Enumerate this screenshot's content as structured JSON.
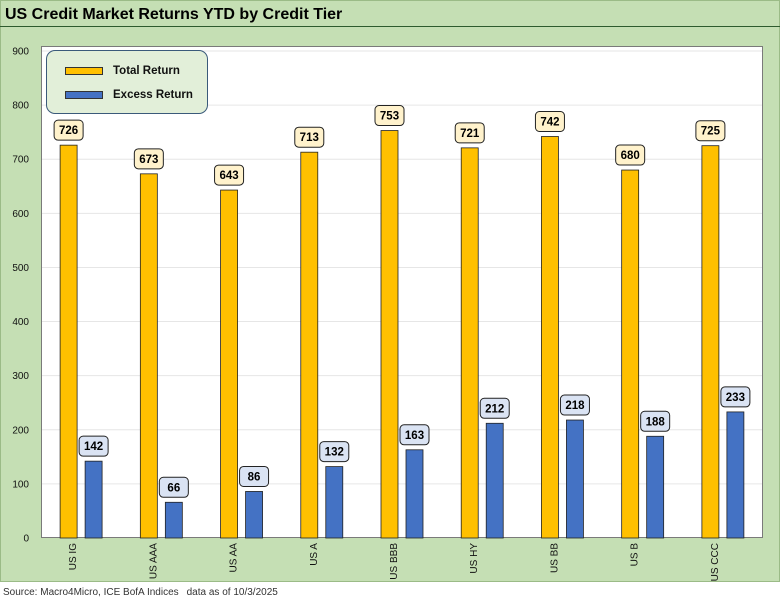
{
  "title": "US Credit Market Returns YTD by Credit Tier",
  "source": "Source: Macro4Micro, ICE BofA Indices",
  "data_as_of": "data as of 10/3/2025",
  "colors": {
    "total": "#FFC000",
    "excess": "#4472C4",
    "total_label_bg": "#FFF2CC",
    "excess_label_bg": "#DAE3F3"
  },
  "chart_data": {
    "type": "bar",
    "title": "US Credit Market Returns YTD by Credit Tier",
    "xlabel": "",
    "ylabel": "",
    "ylim": [
      0,
      900
    ],
    "yticks": [
      0,
      100,
      200,
      300,
      400,
      500,
      600,
      700,
      800,
      900
    ],
    "legend_position": "top-left",
    "categories": [
      "US IG",
      "US AAA",
      "US AA",
      "US A",
      "US BBB",
      "US HY",
      "US BB",
      "US B",
      "US CCC"
    ],
    "series": [
      {
        "name": "Total Return",
        "values": [
          726,
          673,
          643,
          713,
          753,
          721,
          742,
          680,
          725
        ]
      },
      {
        "name": "Excess Return",
        "values": [
          142,
          66,
          86,
          132,
          163,
          212,
          218,
          188,
          233
        ]
      }
    ]
  }
}
